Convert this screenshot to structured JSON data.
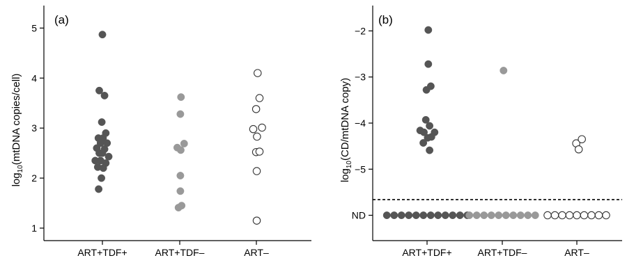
{
  "chart_data": [
    {
      "type": "scatter",
      "panel_label": "(a)",
      "ylabel_prefix": "log",
      "ylabel_sub": "10",
      "ylabel_rest": "(mtDNA copies/cell)",
      "categories": [
        "ART+TDF+",
        "ART+TDF–",
        "ART–"
      ],
      "ylim": [
        0.75,
        5.45
      ],
      "yticks": [
        1,
        2,
        3,
        4,
        5
      ],
      "colors": {
        "ART+TDF+": "#555555",
        "ART+TDF–": "#999999",
        "ART–": "#ffffff"
      },
      "series": [
        {
          "category": "ART+TDF+",
          "points": [
            {
              "o": 0.0,
              "y": 4.87
            },
            {
              "o": -0.25,
              "y": 3.75
            },
            {
              "o": 0.17,
              "y": 3.65
            },
            {
              "o": -0.05,
              "y": 3.12
            },
            {
              "o": 0.27,
              "y": 2.9
            },
            {
              "o": -0.32,
              "y": 2.8
            },
            {
              "o": 0.05,
              "y": 2.8
            },
            {
              "o": -0.15,
              "y": 2.7
            },
            {
              "o": 0.37,
              "y": 2.7
            },
            {
              "o": -0.45,
              "y": 2.6
            },
            {
              "o": 0.17,
              "y": 2.58
            },
            {
              "o": -0.25,
              "y": 2.5
            },
            {
              "o": 0.0,
              "y": 2.5
            },
            {
              "o": 0.5,
              "y": 2.43
            },
            {
              "o": -0.57,
              "y": 2.35
            },
            {
              "o": -0.15,
              "y": 2.35
            },
            {
              "o": 0.27,
              "y": 2.3
            },
            {
              "o": -0.37,
              "y": 2.22
            },
            {
              "o": 0.07,
              "y": 2.2
            },
            {
              "o": -0.08,
              "y": 2.0
            },
            {
              "o": -0.3,
              "y": 1.78
            }
          ]
        },
        {
          "category": "ART+TDF–",
          "points": [
            {
              "o": 0.1,
              "y": 3.62
            },
            {
              "o": 0.05,
              "y": 3.28
            },
            {
              "o": 0.35,
              "y": 2.69
            },
            {
              "o": -0.2,
              "y": 2.61
            },
            {
              "o": 0.08,
              "y": 2.56
            },
            {
              "o": 0.05,
              "y": 2.05
            },
            {
              "o": 0.05,
              "y": 1.74
            },
            {
              "o": 0.15,
              "y": 1.45
            },
            {
              "o": -0.1,
              "y": 1.41
            }
          ]
        },
        {
          "category": "ART–",
          "points": [
            {
              "o": 0.1,
              "y": 4.1
            },
            {
              "o": 0.25,
              "y": 3.6
            },
            {
              "o": -0.02,
              "y": 3.38
            },
            {
              "o": -0.25,
              "y": 2.98
            },
            {
              "o": 0.45,
              "y": 3.01
            },
            {
              "o": 0.05,
              "y": 2.83
            },
            {
              "o": -0.02,
              "y": 2.52
            },
            {
              "o": 0.25,
              "y": 2.53
            },
            {
              "o": 0.03,
              "y": 2.14
            },
            {
              "o": 0.03,
              "y": 1.15
            }
          ]
        }
      ]
    },
    {
      "type": "scatter",
      "panel_label": "(b)",
      "ylabel_prefix": "log",
      "ylabel_sub": "10",
      "ylabel_rest": "(CD/mtDNA copy)",
      "categories": [
        "ART+TDF+",
        "ART+TDF–",
        "ART–"
      ],
      "ylim": [
        -6.55,
        -1.45
      ],
      "yticks": [
        -2,
        -3,
        -4,
        -5
      ],
      "ytick_labels": [
        "−2",
        "−3",
        "−4",
        "−5"
      ],
      "nd_label": "ND",
      "nd_value": -6.0,
      "threshold_line": -5.66,
      "colors": {
        "ART+TDF+": "#555555",
        "ART+TDF–": "#999999",
        "ART–": "#ffffff"
      },
      "series": [
        {
          "category": "ART+TDF+",
          "points": [
            {
              "o": 0.1,
              "y": -1.98
            },
            {
              "o": 0.1,
              "y": -2.72
            },
            {
              "o": -0.05,
              "y": -3.28
            },
            {
              "o": 0.3,
              "y": -3.2
            },
            {
              "o": -0.1,
              "y": -3.93
            },
            {
              "o": 0.2,
              "y": -4.06
            },
            {
              "o": -0.55,
              "y": -4.16
            },
            {
              "o": -0.25,
              "y": -4.2
            },
            {
              "o": 0.6,
              "y": -4.2
            },
            {
              "o": 0.05,
              "y": -4.32
            },
            {
              "o": 0.35,
              "y": -4.3
            },
            {
              "o": -0.3,
              "y": -4.43
            },
            {
              "o": 0.2,
              "y": -4.59
            }
          ],
          "nd_count": 12
        },
        {
          "category": "ART+TDF–",
          "points": [
            {
              "o": 0.1,
              "y": -2.86
            }
          ],
          "nd_count": 10
        },
        {
          "category": "ART–",
          "points": [
            {
              "o": -0.05,
              "y": -4.44
            },
            {
              "o": 0.4,
              "y": -4.35
            },
            {
              "o": 0.15,
              "y": -4.57
            }
          ],
          "nd_count": 9
        }
      ]
    }
  ]
}
